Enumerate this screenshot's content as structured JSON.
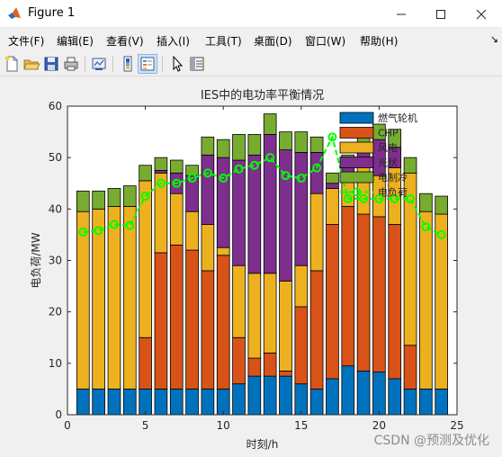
{
  "window": {
    "title": "Figure 1",
    "minimize_label": "─",
    "maximize_label": "☐",
    "close_label": "✕"
  },
  "menu": {
    "items": [
      {
        "label": "文件(F)"
      },
      {
        "label": "编辑(E)"
      },
      {
        "label": "查看(V)"
      },
      {
        "label": "插入(I)"
      },
      {
        "label": "工具(T)"
      },
      {
        "label": "桌面(D)"
      },
      {
        "label": "窗口(W)"
      },
      {
        "label": "帮助(H)"
      }
    ],
    "overflow_label": "↘"
  },
  "toolbar": {
    "buttons": [
      {
        "icon": "new-file-icon"
      },
      {
        "icon": "open-folder-icon"
      },
      {
        "icon": "save-icon"
      },
      {
        "icon": "print-icon"
      },
      {
        "icon": "link-icon"
      },
      {
        "icon": "colorbar-icon"
      },
      {
        "icon": "legend-icon"
      },
      {
        "icon": "pointer-icon"
      },
      {
        "icon": "property-inspector-icon"
      }
    ]
  },
  "chart_data": {
    "type": "bar",
    "stacked": true,
    "title": "IES中的电功率平衡情况",
    "xlabel": "时刻/h",
    "ylabel": "电负荷/MW",
    "xlim": [
      0,
      25
    ],
    "ylim": [
      0,
      60
    ],
    "xticks": [
      0,
      5,
      10,
      15,
      20,
      25
    ],
    "yticks": [
      0,
      10,
      20,
      30,
      40,
      50,
      60
    ],
    "grid": false,
    "legend_position": "top-right",
    "x": [
      1,
      2,
      3,
      4,
      5,
      6,
      7,
      8,
      9,
      10,
      11,
      12,
      13,
      14,
      15,
      16,
      17,
      18,
      19,
      20,
      21,
      22,
      23,
      24
    ],
    "series": [
      {
        "name": "燃气轮机",
        "color": "#0072BD",
        "values": [
          5,
          5,
          5,
          5,
          5,
          5,
          5,
          5,
          5,
          5,
          6,
          7.5,
          7.5,
          7.5,
          6,
          5,
          7,
          9.5,
          8.5,
          8.3,
          7,
          5,
          5,
          5
        ]
      },
      {
        "name": "CHP",
        "color": "#D95319",
        "values": [
          0,
          0,
          0,
          0,
          10,
          26.5,
          28,
          27,
          23,
          26,
          9,
          3.5,
          4.5,
          1,
          15,
          23,
          30,
          31,
          30.5,
          30.2,
          30,
          8.5,
          0,
          0
        ]
      },
      {
        "name": "风电",
        "color": "#EDB120",
        "values": [
          34.5,
          35,
          35.5,
          35.5,
          30.5,
          15.5,
          10,
          7.5,
          9,
          1.5,
          14,
          16.5,
          15.5,
          17.5,
          8,
          15,
          7,
          5,
          10,
          8,
          11,
          33.5,
          34.5,
          34
        ]
      },
      {
        "name": "光伏",
        "color": "#7E2F8E",
        "values": [
          0,
          0,
          0,
          0,
          0,
          0.5,
          4,
          7,
          13.5,
          17.5,
          20.5,
          23,
          27,
          25.5,
          22,
          8,
          1,
          3,
          3.5,
          7,
          4,
          0,
          0,
          0
        ]
      },
      {
        "name": "电制冷",
        "color": "#77AC30",
        "values": [
          4,
          3.5,
          3.5,
          4,
          3,
          2.5,
          2.5,
          2,
          3.5,
          3.5,
          5,
          4,
          4,
          3.5,
          4,
          3,
          2,
          2,
          2.5,
          3,
          3.5,
          3,
          3.5,
          3.5
        ]
      }
    ],
    "line_series": {
      "name": "电负荷",
      "color": "#00FF00",
      "marker": "circle",
      "values": [
        35.5,
        35.8,
        37,
        36.8,
        42.5,
        45,
        45,
        46,
        47,
        46,
        47.8,
        48.5,
        50,
        46.5,
        46,
        48,
        54,
        42,
        42,
        42,
        42,
        42,
        36.5,
        35
      ]
    }
  },
  "watermark": "CSDN @预测及优化"
}
